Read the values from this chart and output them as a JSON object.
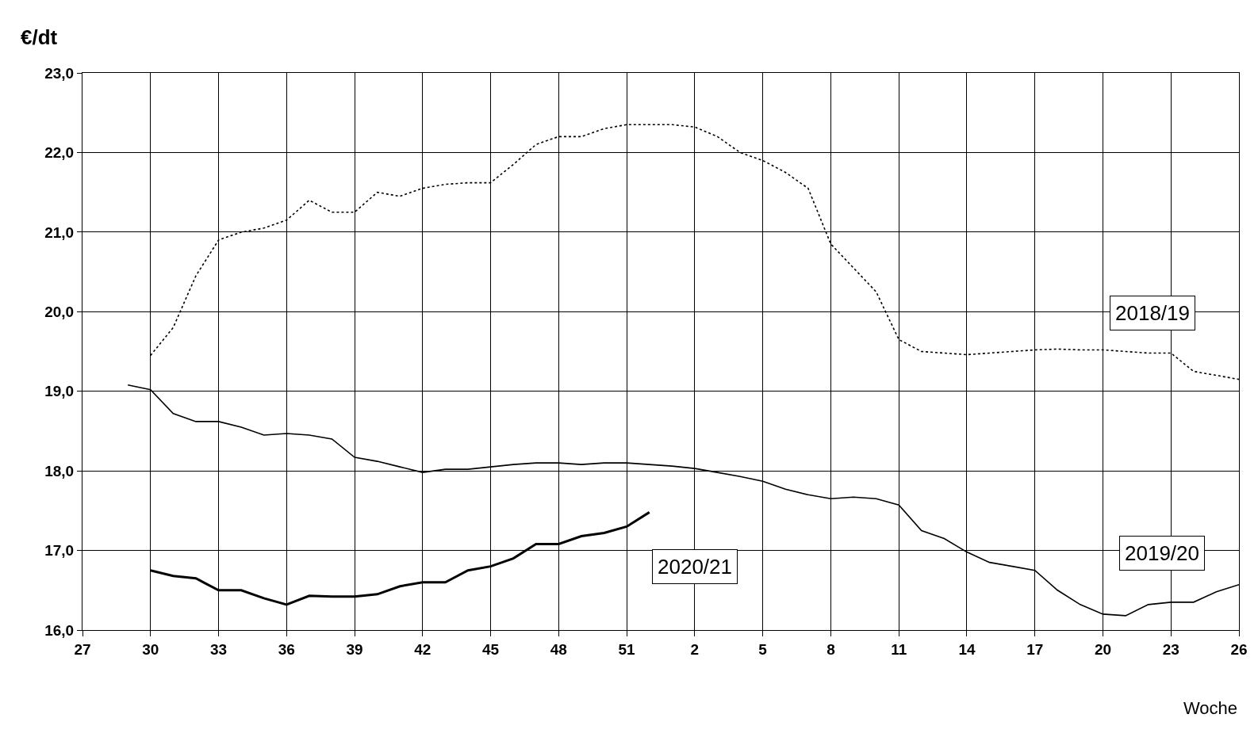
{
  "chart_data": {
    "type": "line",
    "ylabel": "€/dt",
    "xlabel": "Woche",
    "ylim": [
      16,
      23
    ],
    "categories": [
      "27",
      null,
      null,
      "30",
      null,
      null,
      "33",
      null,
      null,
      "36",
      null,
      null,
      "39",
      null,
      null,
      "42",
      null,
      null,
      "45",
      null,
      null,
      "48",
      null,
      null,
      "51",
      null,
      null,
      "2",
      null,
      null,
      "5",
      null,
      null,
      "8",
      null,
      null,
      "11",
      null,
      null,
      "14",
      null,
      null,
      "17",
      null,
      null,
      "20",
      null,
      null,
      "23",
      null,
      null,
      "26"
    ],
    "yticks": [
      {
        "value": 16,
        "label": "16,0"
      },
      {
        "value": 17,
        "label": "17,0"
      },
      {
        "value": 18,
        "label": "18,0"
      },
      {
        "value": 19,
        "label": "19,0"
      },
      {
        "value": 20,
        "label": "20,0"
      },
      {
        "value": 21,
        "label": "21,0"
      },
      {
        "value": 22,
        "label": "22,0"
      },
      {
        "value": 23,
        "label": "23,0"
      }
    ],
    "grid": true,
    "legend": false,
    "marker": "none",
    "series": [
      {
        "name": "2018/19",
        "color": "#000000",
        "line_style": "dotted",
        "values": [
          null,
          null,
          null,
          19.45,
          19.8,
          20.45,
          20.9,
          21.0,
          21.05,
          21.15,
          21.4,
          21.25,
          21.25,
          21.5,
          21.45,
          21.55,
          21.6,
          21.62,
          21.62,
          21.85,
          22.1,
          22.2,
          22.2,
          22.3,
          22.35,
          22.35,
          22.35,
          22.32,
          22.2,
          22.0,
          21.9,
          21.75,
          21.55,
          20.85,
          20.55,
          20.25,
          19.65,
          19.5,
          19.48,
          19.46,
          19.48,
          19.5,
          19.52,
          19.53,
          19.52,
          19.52,
          19.5,
          19.48,
          19.48,
          19.25,
          19.2,
          19.15
        ]
      },
      {
        "name": "2019/20",
        "color": "#000000",
        "line_style": "solid",
        "values": [
          null,
          null,
          19.08,
          19.02,
          18.72,
          18.62,
          18.62,
          18.55,
          18.45,
          18.47,
          18.45,
          18.4,
          18.17,
          18.12,
          18.05,
          17.98,
          18.02,
          18.02,
          18.05,
          18.08,
          18.1,
          18.1,
          18.08,
          18.1,
          18.1,
          18.08,
          18.06,
          18.03,
          17.98,
          17.93,
          17.87,
          17.77,
          17.7,
          17.65,
          17.67,
          17.65,
          17.57,
          17.25,
          17.15,
          16.98,
          16.85,
          16.8,
          16.75,
          16.5,
          16.32,
          16.2,
          16.18,
          16.32,
          16.35,
          16.35,
          16.48,
          16.57
        ]
      },
      {
        "name": "2020/21",
        "color": "#000000",
        "line_style": "solid",
        "values": [
          null,
          null,
          null,
          16.75,
          16.68,
          16.65,
          16.5,
          16.5,
          16.4,
          16.32,
          16.43,
          16.42,
          16.42,
          16.45,
          16.55,
          16.6,
          16.6,
          16.75,
          16.8,
          16.9,
          17.08,
          17.08,
          17.18,
          17.22,
          17.3,
          17.48,
          null,
          null,
          null,
          null,
          null,
          null,
          null,
          null,
          null,
          null,
          null,
          null,
          null,
          null,
          null,
          null,
          null,
          null,
          null,
          null,
          null,
          null,
          null,
          null,
          null,
          null
        ]
      }
    ]
  }
}
